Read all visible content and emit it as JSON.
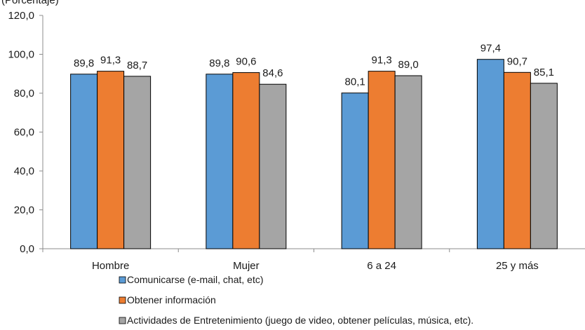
{
  "chart_data": {
    "type": "bar",
    "top_note": "(Porcentaje)",
    "categories": [
      "Hombre",
      "Mujer",
      "6 a 24",
      "25 y más"
    ],
    "series": [
      {
        "name": "Comunicarse (e-mail, chat, etc)",
        "color": "#5b9bd5",
        "values": [
          89.8,
          89.8,
          80.1,
          97.4
        ]
      },
      {
        "name": "Obtener información",
        "color": "#ed7d31",
        "values": [
          91.3,
          90.6,
          91.3,
          90.7
        ]
      },
      {
        "name": "Actividades de Entretenimiento (juego de video, obtener películas, música, etc).",
        "color": "#a5a5a5",
        "values": [
          88.7,
          84.6,
          89.0,
          85.1
        ]
      }
    ],
    "value_labels": [
      [
        "89,8",
        "89,8",
        "80,1",
        "97,4"
      ],
      [
        "91,3",
        "90,6",
        "91,3",
        "90,7"
      ],
      [
        "88,7",
        "84,6",
        "89,0",
        "85,1"
      ]
    ],
    "ylim": [
      0,
      120
    ],
    "yticks": [
      0,
      20,
      40,
      60,
      80,
      100,
      120
    ],
    "ytick_labels": [
      "0,0",
      "20,0",
      "40,0",
      "60,0",
      "80,0",
      "100,0",
      "120,0"
    ],
    "grid": false,
    "legend_position": "bottom"
  }
}
